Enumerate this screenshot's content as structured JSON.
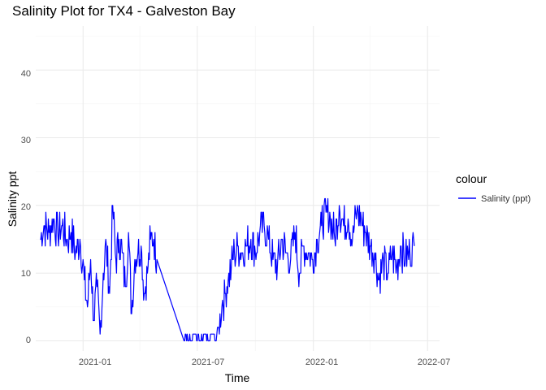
{
  "chart_data": {
    "type": "line",
    "title": "Salinity Plot for TX4 - Galveston Bay",
    "xlabel": "Time",
    "ylabel": "Salinity ppt",
    "ylim": [
      -1.5,
      46.5
    ],
    "xlim": [
      "2020-10-18",
      "2022-07-20"
    ],
    "yticks": [
      "0",
      "10",
      "20",
      "30",
      "40"
    ],
    "xticks": [
      {
        "label": "2021-01",
        "date": "2021-01-01"
      },
      {
        "label": "2021-07",
        "date": "2021-07-01"
      },
      {
        "label": "2022-01",
        "date": "2022-01-01"
      },
      {
        "label": "2022-07",
        "date": "2022-07-01"
      }
    ],
    "grid": true,
    "legend": {
      "title": "colour",
      "position": "right",
      "entries": [
        "Salinity (ppt)"
      ]
    },
    "series": [
      {
        "name": "Salinity (ppt)",
        "color": "#0000FF",
        "x": [
          "2020-10-25",
          "2020-11-01",
          "2020-11-08",
          "2020-11-15",
          "2020-11-22",
          "2020-11-29",
          "2020-12-06",
          "2020-12-13",
          "2020-12-20",
          "2020-12-27",
          "2021-01-03",
          "2021-01-08",
          "2021-01-13",
          "2021-01-18",
          "2021-01-23",
          "2021-01-28",
          "2021-02-02",
          "2021-02-07",
          "2021-02-12",
          "2021-02-17",
          "2021-02-22",
          "2021-02-27",
          "2021-03-04",
          "2021-03-09",
          "2021-03-14",
          "2021-03-19",
          "2021-03-24",
          "2021-03-29",
          "2021-04-03",
          "2021-04-08",
          "2021-04-13",
          "2021-04-18",
          "2021-04-23",
          "2021-04-28",
          "2021-06-10",
          "2021-06-12",
          "2021-06-20",
          "2021-06-25",
          "2021-07-01",
          "2021-07-10",
          "2021-07-15",
          "2021-07-20",
          "2021-07-25",
          "2021-07-30",
          "2021-08-04",
          "2021-08-09",
          "2021-08-14",
          "2021-08-19",
          "2021-08-24",
          "2021-08-29",
          "2021-09-03",
          "2021-09-10",
          "2021-09-17",
          "2021-09-24",
          "2021-10-01",
          "2021-10-08",
          "2021-10-15",
          "2021-10-22",
          "2021-10-29",
          "2021-11-05",
          "2021-11-12",
          "2021-11-19",
          "2021-11-26",
          "2021-12-03",
          "2021-12-10",
          "2021-12-17",
          "2021-12-24",
          "2021-12-31",
          "2022-01-07",
          "2022-01-14",
          "2022-01-21",
          "2022-01-28",
          "2022-02-04",
          "2022-02-11",
          "2022-02-18",
          "2022-02-25",
          "2022-03-04",
          "2022-03-11",
          "2022-03-18",
          "2022-03-25",
          "2022-04-01",
          "2022-04-08",
          "2022-04-15",
          "2022-04-22",
          "2022-04-29",
          "2022-05-06",
          "2022-05-13",
          "2022-05-20",
          "2022-05-27",
          "2022-06-03",
          "2022-06-10"
        ],
        "y": [
          15,
          17,
          16,
          18,
          16,
          17,
          15,
          16,
          13,
          15,
          9,
          5,
          12,
          3,
          8,
          1,
          10,
          14,
          7,
          20,
          12,
          15,
          13,
          8,
          16,
          4,
          12,
          13,
          14,
          7,
          10,
          15,
          15,
          12,
          0,
          1,
          0,
          1,
          0,
          0,
          1,
          0,
          1,
          0,
          2,
          5,
          7,
          9,
          11,
          13,
          14,
          13,
          14,
          15,
          13,
          16,
          17,
          15,
          12,
          11,
          15,
          13,
          12,
          16,
          10,
          14,
          13,
          12,
          15,
          17,
          19,
          18,
          15,
          20,
          17,
          18,
          15,
          19,
          18,
          16,
          14,
          13,
          9,
          12,
          10,
          13,
          11,
          14,
          12,
          13,
          14
        ]
      }
    ]
  }
}
